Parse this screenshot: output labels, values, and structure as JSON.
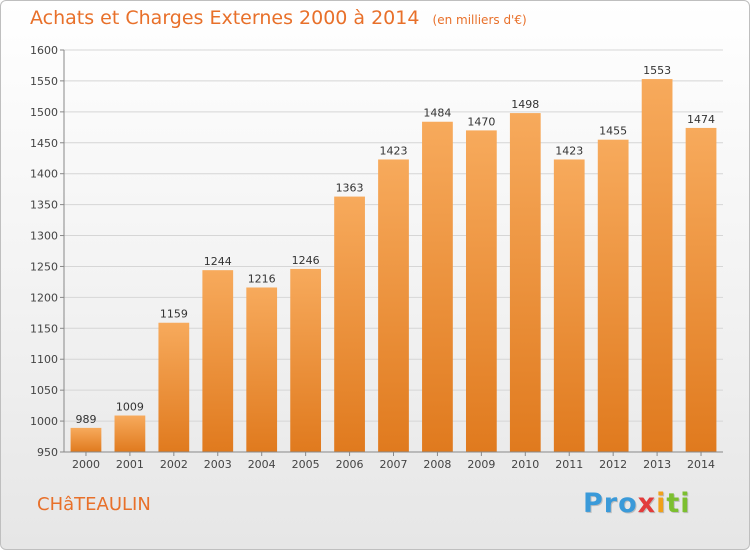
{
  "title": "Achats et Charges Externes 2000 à 2014",
  "unit_note": "(en milliers d'€)",
  "city": "CHâTEAULIN",
  "logo": {
    "parts": [
      "Pro",
      "x",
      "i",
      "ti"
    ]
  },
  "colors": {
    "title": "#e8702a",
    "bar_top": "#f7aa5c",
    "bar_bottom": "#e07a1e",
    "grid": "#d6d6d6"
  },
  "chart_data": {
    "type": "bar",
    "title": "Achats et Charges Externes 2000 à 2014",
    "subtitle": "(en milliers d'€)",
    "xlabel": "",
    "ylabel": "",
    "categories": [
      "2000",
      "2001",
      "2002",
      "2003",
      "2004",
      "2005",
      "2006",
      "2007",
      "2008",
      "2009",
      "2010",
      "2011",
      "2012",
      "2013",
      "2014"
    ],
    "values": [
      989,
      1009,
      1159,
      1244,
      1216,
      1246,
      1363,
      1423,
      1484,
      1470,
      1498,
      1423,
      1455,
      1553,
      1474
    ],
    "ylim": [
      950,
      1600
    ],
    "yticks": [
      950,
      1000,
      1050,
      1100,
      1150,
      1200,
      1250,
      1300,
      1350,
      1400,
      1450,
      1500,
      1550,
      1600
    ],
    "grid": true,
    "data_labels": true
  }
}
